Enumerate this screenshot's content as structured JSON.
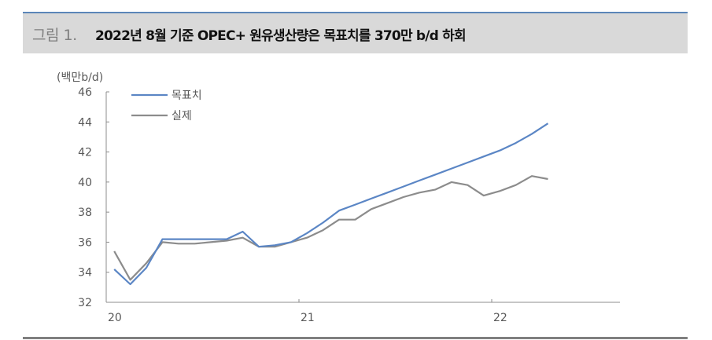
{
  "header": {
    "prefix": "그림 1.",
    "title": "2022년 8월 기준 OPEC+ 원유생산량은 목표치를 370만 b/d 하회"
  },
  "colors": {
    "target": "#5b86c5",
    "actual": "#8c8c8c",
    "title_bar_bg": "#d9d9d9",
    "title_bar_top": "#5b86b9",
    "bottom_rule": "#7f7f7f"
  },
  "chart_data": {
    "type": "line",
    "title": "2022년 8월 기준 OPEC+ 원유생산량은 목표치를 370만 b/d 하회",
    "ylabel": "(백만b/d)",
    "xlabel": "",
    "ylim": [
      32,
      46
    ],
    "yticks": [
      32,
      34,
      36,
      38,
      40,
      42,
      44,
      46
    ],
    "xtick_labels": [
      "20",
      "21",
      "22"
    ],
    "grid": false,
    "legend_position": "top-left",
    "x": [
      "2020-01",
      "2020-02",
      "2020-03",
      "2020-04",
      "2020-05",
      "2020-06",
      "2020-07",
      "2020-08",
      "2020-09",
      "2020-10",
      "2020-11",
      "2020-12",
      "2021-01",
      "2021-02",
      "2021-03",
      "2021-04",
      "2021-05",
      "2021-06",
      "2021-07",
      "2021-08",
      "2021-09",
      "2021-10",
      "2021-11",
      "2021-12",
      "2022-01",
      "2022-02",
      "2022-03",
      "2022-04"
    ],
    "series": [
      {
        "name": "목표치",
        "color": "#5b86c5",
        "values": [
          34.2,
          33.2,
          34.3,
          36.2,
          36.2,
          36.2,
          36.2,
          36.2,
          36.7,
          35.7,
          35.8,
          36.0,
          36.6,
          37.3,
          38.1,
          38.5,
          38.9,
          39.3,
          39.7,
          40.1,
          40.5,
          40.9,
          41.3,
          41.7,
          42.1,
          42.6,
          43.2,
          43.9
        ]
      },
      {
        "name": "실제",
        "color": "#8c8c8c",
        "values": [
          35.4,
          33.5,
          34.6,
          36.0,
          35.9,
          35.9,
          36.0,
          36.1,
          36.3,
          35.7,
          35.7,
          36.0,
          36.3,
          36.8,
          37.5,
          37.5,
          38.2,
          38.6,
          39.0,
          39.3,
          39.5,
          40.0,
          39.8,
          39.1,
          39.4,
          39.8,
          40.4,
          40.2
        ]
      }
    ]
  }
}
